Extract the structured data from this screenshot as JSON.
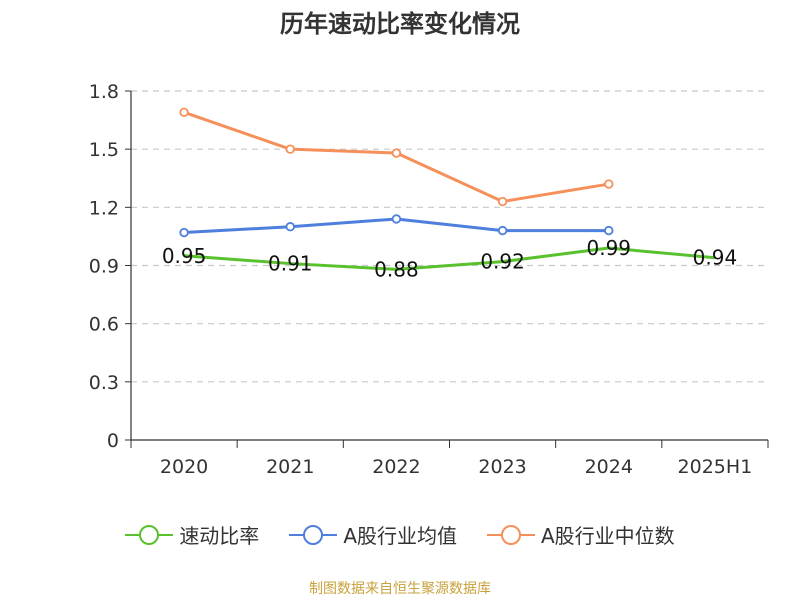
{
  "chart_data": {
    "type": "line",
    "title": "历年速动比率变化情况",
    "categories": [
      "2020",
      "2021",
      "2022",
      "2023",
      "2024",
      "2025H1"
    ],
    "ylim": [
      0,
      1.8
    ],
    "yticks": [
      "0",
      "0.3",
      "0.6",
      "0.9",
      "1.2",
      "1.5",
      "1.8"
    ],
    "grid": true,
    "legend_position": "bottom",
    "series": [
      {
        "name": "速动比率",
        "color": "#5ac12e",
        "values": [
          0.95,
          0.91,
          0.88,
          0.92,
          0.99,
          0.94
        ],
        "labels": [
          "0.95",
          "0.91",
          "0.88",
          "0.92",
          "0.99",
          "0.94"
        ],
        "show_labels": true,
        "show_markers": false
      },
      {
        "name": "A股行业均值",
        "color": "#4e7fdc",
        "values": [
          1.07,
          1.1,
          1.14,
          1.08,
          1.08,
          null
        ],
        "show_labels": false,
        "show_markers": true
      },
      {
        "name": "A股行业中位数",
        "color": "#f5905a",
        "values": [
          1.69,
          1.5,
          1.48,
          1.23,
          1.32,
          null
        ],
        "show_labels": false,
        "show_markers": true
      }
    ]
  },
  "source_note": "制图数据来自恒生聚源数据库"
}
